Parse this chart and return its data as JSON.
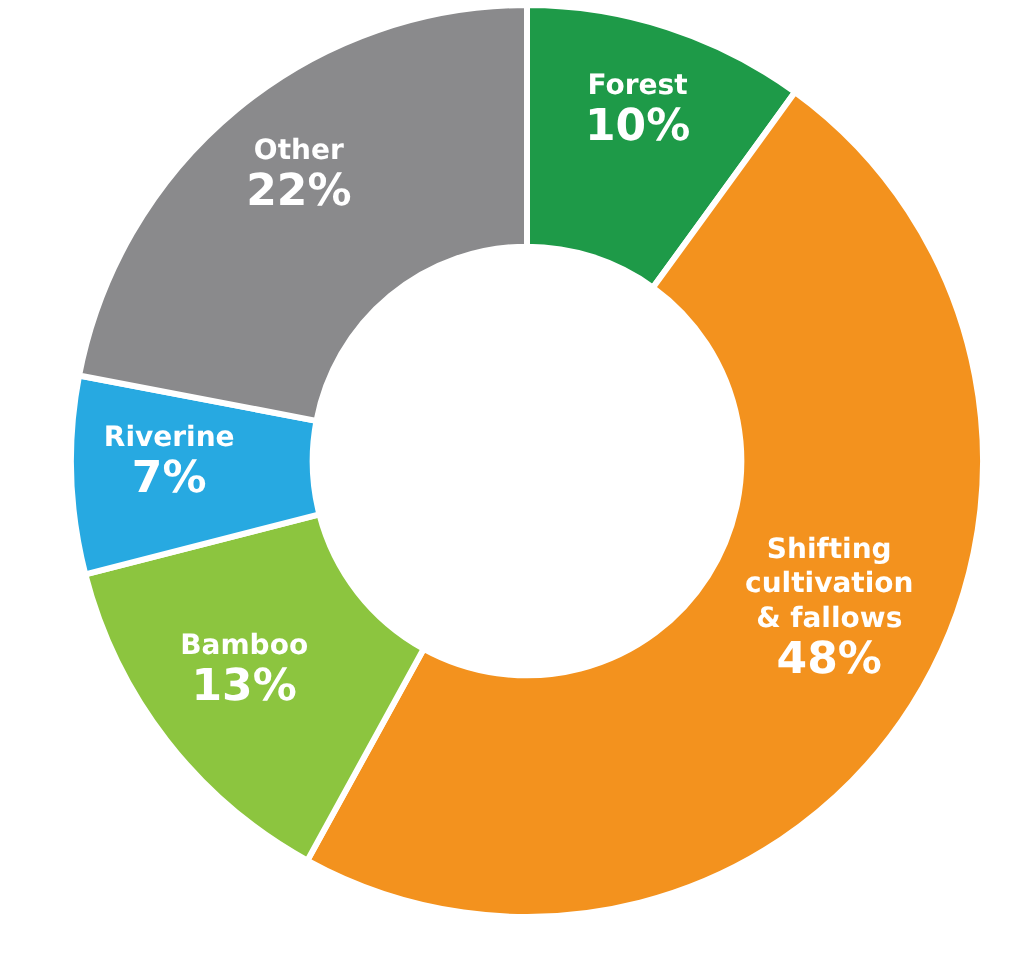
{
  "chart_data": {
    "type": "donut",
    "categories": [
      "Forest",
      "Shifting\ncultivation\n& fallows",
      "Bamboo",
      "Riverine",
      "Other"
    ],
    "values": [
      10,
      48,
      13,
      7,
      22
    ],
    "value_labels": [
      "10%",
      "48%",
      "13%",
      "7%",
      "22%"
    ],
    "colors": [
      "#1e9a48",
      "#f3921e",
      "#8cc53f",
      "#27a9e1",
      "#8a8a8c"
    ],
    "legend": false
  }
}
